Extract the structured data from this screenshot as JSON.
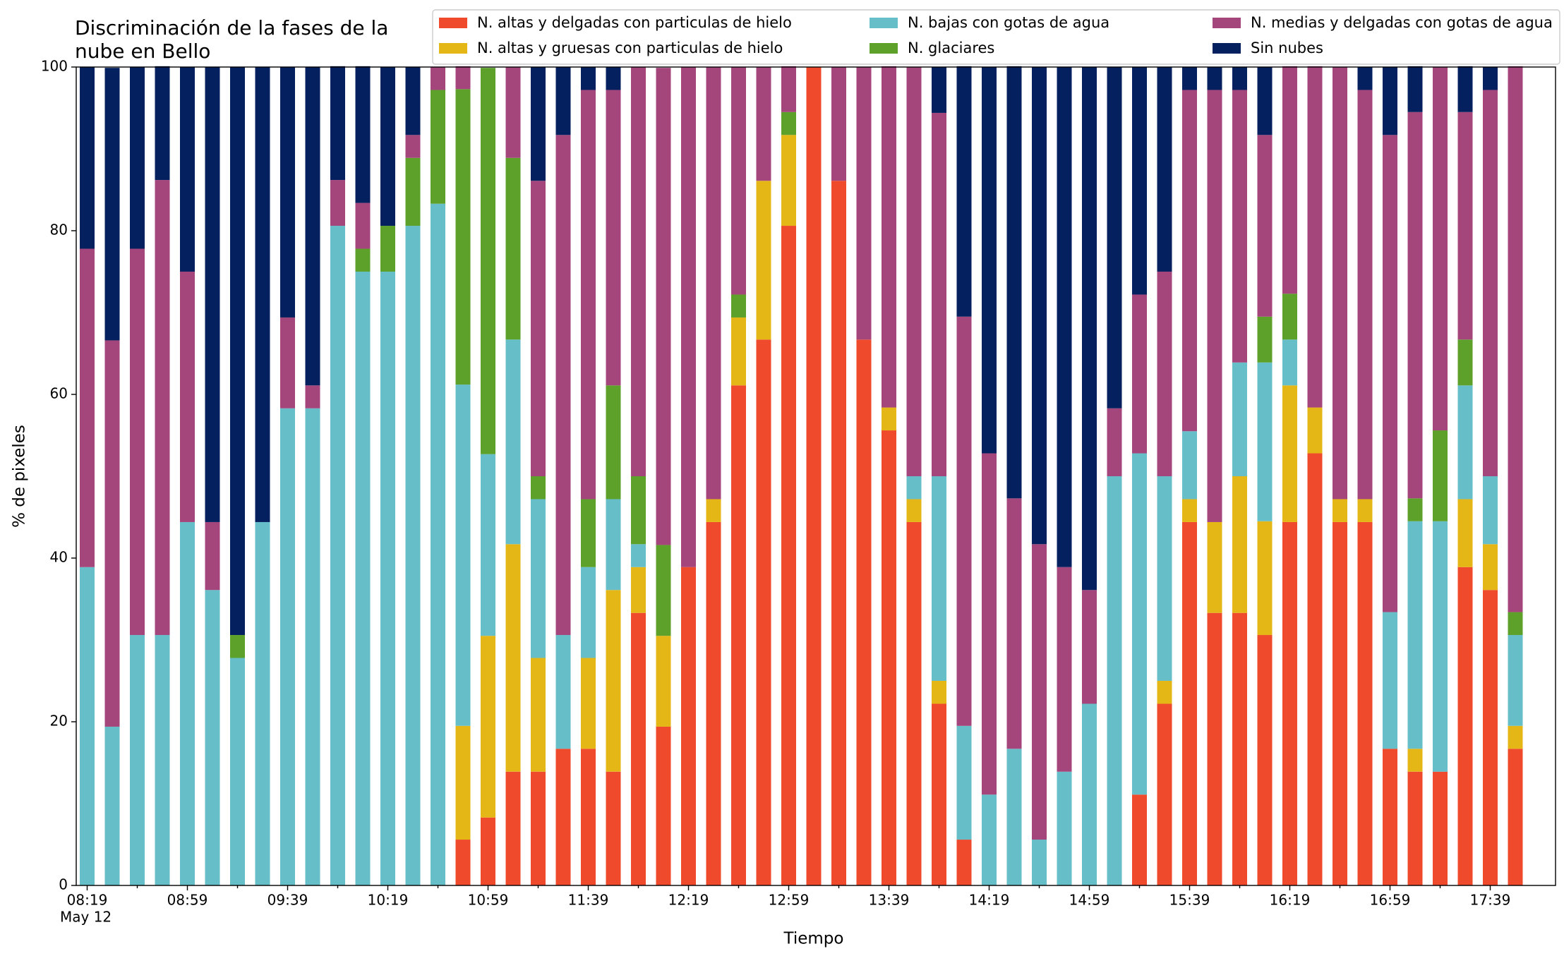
{
  "chart_data": {
    "type": "stacked_bar",
    "title": [
      "Discriminación de la fases de la",
      "nube en Bello"
    ],
    "xlabel": "Tiempo",
    "ylabel": "% de pixeles",
    "categories": [
      "08:19",
      null,
      null,
      null,
      "08:59",
      null,
      null,
      null,
      "09:39",
      null,
      null,
      null,
      "10:19",
      null,
      null,
      null,
      "10:59",
      null,
      null,
      null,
      "11:39",
      null,
      null,
      null,
      "12:19",
      null,
      null,
      null,
      "12:59",
      null,
      null,
      null,
      "13:39",
      null,
      null,
      null,
      "14:19",
      null,
      null,
      null,
      "14:59",
      null,
      null,
      null,
      "15:39",
      null,
      null,
      null,
      "16:19",
      null,
      null,
      null,
      "16:59",
      null,
      null,
      null,
      "17:39",
      null
    ],
    "x_sublabel": "May 12",
    "ylim": [
      0,
      100
    ],
    "yticks": [
      0,
      20,
      40,
      60,
      80,
      100
    ],
    "legend": "top",
    "series": [
      {
        "name": "N. altas y delgadas con particulas de hielo",
        "color": "#ef4a2b",
        "values": [
          0,
          0,
          0,
          0,
          0,
          0,
          0,
          0,
          0,
          0,
          0,
          0,
          0,
          0,
          0,
          5.6,
          8.3,
          13.9,
          13.9,
          16.7,
          16.7,
          13.9,
          33.3,
          19.4,
          38.9,
          44.4,
          61.1,
          66.7,
          80.6,
          100,
          86.1,
          66.7,
          55.6,
          44.4,
          22.2,
          5.6,
          0,
          0,
          0,
          0,
          0,
          0,
          11.1,
          22.2,
          44.4,
          33.3,
          33.3,
          30.6,
          44.4,
          52.8,
          44.4,
          44.4,
          16.7,
          13.9,
          13.9,
          38.9,
          36.1,
          16.7
        ]
      },
      {
        "name": "N. altas y gruesas con particulas de hielo",
        "color": "#e5b716",
        "values": [
          0,
          0,
          0,
          0,
          0,
          0,
          0,
          0,
          0,
          0,
          0,
          0,
          0,
          0,
          0,
          13.9,
          22.2,
          27.8,
          13.9,
          0,
          11.1,
          22.2,
          5.6,
          11.1,
          0,
          2.8,
          8.3,
          19.4,
          11.1,
          0,
          0,
          0,
          2.8,
          2.8,
          2.8,
          0,
          0,
          0,
          0,
          0,
          0,
          0,
          0,
          2.8,
          2.8,
          11.1,
          16.7,
          13.9,
          16.7,
          5.6,
          2.8,
          2.8,
          0,
          2.8,
          0,
          8.3,
          5.6,
          2.8
        ]
      },
      {
        "name": "N. bajas con gotas de agua",
        "color": "#65bec8",
        "values": [
          38.9,
          19.4,
          30.6,
          30.6,
          44.4,
          36.1,
          27.8,
          44.4,
          58.3,
          58.3,
          80.6,
          75,
          75,
          80.6,
          83.3,
          41.7,
          22.2,
          25,
          19.4,
          13.9,
          11.1,
          11.1,
          2.8,
          0,
          0,
          0,
          0,
          0,
          0,
          0,
          0,
          0,
          0,
          2.8,
          25,
          13.9,
          11.1,
          16.7,
          5.6,
          13.9,
          22.2,
          50,
          41.7,
          25,
          8.3,
          0,
          13.9,
          19.4,
          5.6,
          0,
          0,
          0,
          16.7,
          27.8,
          30.6,
          13.9,
          8.3,
          11.1
        ]
      },
      {
        "name": "N. glaciares",
        "color": "#5da12b",
        "values": [
          0,
          0,
          0,
          0,
          0,
          0,
          2.8,
          0,
          0,
          0,
          0,
          2.8,
          5.6,
          8.3,
          13.9,
          36.1,
          47.2,
          22.2,
          2.8,
          0,
          8.3,
          13.9,
          8.3,
          11.1,
          0,
          0,
          2.8,
          0,
          2.8,
          0,
          0,
          0,
          0,
          0,
          0,
          0,
          0,
          0,
          0,
          0,
          0,
          0,
          0,
          0,
          0,
          0,
          0,
          5.6,
          5.6,
          0,
          0,
          0,
          0,
          2.8,
          11.1,
          5.6,
          0,
          2.8
        ]
      },
      {
        "name": "N. medias y delgadas con gotas de agua",
        "color": "#a4457c",
        "values": [
          38.9,
          47.2,
          47.2,
          55.6,
          30.6,
          8.3,
          0,
          0,
          11.1,
          2.8,
          5.6,
          5.6,
          0,
          2.8,
          2.8,
          2.8,
          0,
          11.1,
          36.1,
          61.1,
          50,
          36.1,
          50,
          58.3,
          61.1,
          52.8,
          27.8,
          13.9,
          5.6,
          0,
          13.9,
          33.3,
          41.7,
          50,
          44.4,
          50,
          41.7,
          30.6,
          36.1,
          25,
          13.9,
          8.3,
          19.4,
          25,
          41.7,
          52.8,
          33.3,
          22.2,
          27.8,
          41.7,
          52.8,
          50,
          58.3,
          47.2,
          44.4,
          27.8,
          47.2,
          66.7
        ]
      },
      {
        "name": "Sin nubes",
        "color": "#05205e",
        "values": [
          22.2,
          33.3,
          22.2,
          13.9,
          25,
          55.6,
          69.4,
          55.6,
          30.6,
          38.9,
          13.9,
          16.7,
          19.4,
          8.3,
          0,
          0,
          0,
          0,
          13.9,
          8.3,
          2.8,
          2.8,
          0,
          0,
          0,
          0,
          0,
          0,
          0,
          0,
          0,
          0,
          0,
          0,
          5.6,
          30.6,
          47.2,
          52.8,
          58.3,
          61.1,
          63.9,
          41.7,
          27.8,
          25,
          2.8,
          2.8,
          2.8,
          8.3,
          0,
          0,
          0,
          2.8,
          8.3,
          5.6,
          0,
          5.6,
          2.8,
          0
        ]
      }
    ]
  }
}
